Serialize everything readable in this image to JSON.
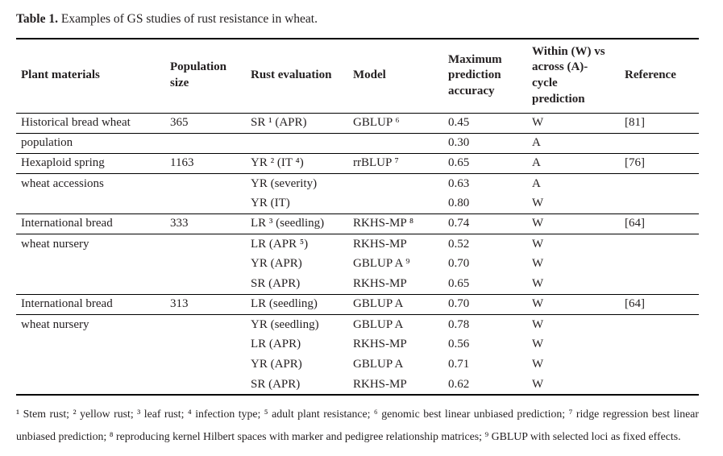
{
  "title": {
    "label": "Table 1.",
    "text": "Examples of GS studies of rust resistance in wheat."
  },
  "table": {
    "columns": [
      "Plant materials",
      "Population size",
      "Rust evaluation",
      "Model",
      "Maximum prediction accuracy",
      "Within (W) vs across (A)-cycle prediction",
      "Reference"
    ],
    "col_keys": [
      "plant",
      "population",
      "rust",
      "model",
      "accuracy",
      "cycle",
      "reference"
    ],
    "rows": [
      {
        "plant": "Historical bread wheat",
        "population": "365",
        "rust": "SR ¹ (APR)",
        "model": "GBLUP ⁶",
        "accuracy": "0.45",
        "cycle": "W",
        "reference": "[81]",
        "rule_below": true
      },
      {
        "plant": "population",
        "population": "",
        "rust": "",
        "model": "",
        "accuracy": "0.30",
        "cycle": "A",
        "reference": "",
        "rule_below": true
      },
      {
        "plant": "Hexaploid spring",
        "population": "1163",
        "rust": "YR ² (IT ⁴)",
        "model": "rrBLUP ⁷",
        "accuracy": "0.65",
        "cycle": "A",
        "reference": "[76]",
        "rule_below": true
      },
      {
        "plant": "wheat accessions",
        "population": "",
        "rust": "YR (severity)",
        "model": "",
        "accuracy": "0.63",
        "cycle": "A",
        "reference": "",
        "rule_below": false
      },
      {
        "plant": "",
        "population": "",
        "rust": "YR (IT)",
        "model": "",
        "accuracy": "0.80",
        "cycle": "W",
        "reference": "",
        "rule_below": true
      },
      {
        "plant": "International bread",
        "population": "333",
        "rust": "LR ³ (seedling)",
        "model": "RKHS-MP ⁸",
        "accuracy": "0.74",
        "cycle": "W",
        "reference": "[64]",
        "rule_below": true
      },
      {
        "plant": "wheat nursery",
        "population": "",
        "rust": "LR (APR ⁵)",
        "model": "RKHS-MP",
        "accuracy": "0.52",
        "cycle": "W",
        "reference": "",
        "rule_below": false
      },
      {
        "plant": "",
        "population": "",
        "rust": "YR (APR)",
        "model": "GBLUP A ⁹",
        "accuracy": "0.70",
        "cycle": "W",
        "reference": "",
        "rule_below": false
      },
      {
        "plant": "",
        "population": "",
        "rust": "SR (APR)",
        "model": "RKHS-MP",
        "accuracy": "0.65",
        "cycle": "W",
        "reference": "",
        "rule_below": true
      },
      {
        "plant": "International bread",
        "population": "313",
        "rust": "LR (seedling)",
        "model": "GBLUP A",
        "accuracy": "0.70",
        "cycle": "W",
        "reference": "[64]",
        "rule_below": true
      },
      {
        "plant": "wheat nursery",
        "population": "",
        "rust": "YR (seedling)",
        "model": "GBLUP A",
        "accuracy": "0.78",
        "cycle": "W",
        "reference": "",
        "rule_below": false
      },
      {
        "plant": "",
        "population": "",
        "rust": "LR (APR)",
        "model": "RKHS-MP",
        "accuracy": "0.56",
        "cycle": "W",
        "reference": "",
        "rule_below": false
      },
      {
        "plant": "",
        "population": "",
        "rust": "YR (APR)",
        "model": "GBLUP A",
        "accuracy": "0.71",
        "cycle": "W",
        "reference": "",
        "rule_below": false
      },
      {
        "plant": "",
        "population": "",
        "rust": "SR (APR)",
        "model": "RKHS-MP",
        "accuracy": "0.62",
        "cycle": "W",
        "reference": "",
        "rule_below": false
      }
    ]
  },
  "footnote": "¹ Stem rust; ² yellow rust; ³ leaf rust; ⁴ infection type; ⁵ adult plant resistance; ⁶ genomic best linear unbiased prediction; ⁷ ridge regression best linear unbiased prediction; ⁸ reproducing kernel Hilbert spaces with marker and pedigree relationship matrices; ⁹ GBLUP with selected loci as fixed effects.",
  "colors": {
    "text": "#231f20",
    "rule": "#000000",
    "background": "#ffffff"
  }
}
